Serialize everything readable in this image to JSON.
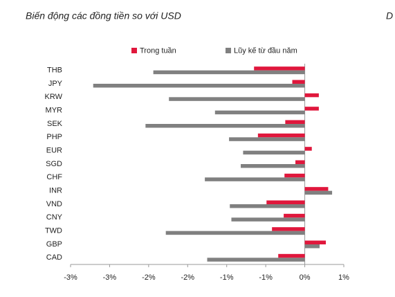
{
  "chart_data": {
    "type": "hbar",
    "title": "Biến động các đồng tiền so với USD",
    "title_right": "D",
    "categories": [
      "THB",
      "JPY",
      "KRW",
      "MYR",
      "SEK",
      "PHP",
      "EUR",
      "SGD",
      "CHF",
      "INR",
      "VND",
      "CNY",
      "TWD",
      "GBP",
      "CAD"
    ],
    "series": [
      {
        "name": "Trong tuần",
        "color": "#e0173c",
        "values": [
          -0.65,
          -0.16,
          0.18,
          0.18,
          -0.25,
          -0.6,
          0.09,
          -0.12,
          -0.26,
          0.3,
          -0.49,
          -0.27,
          -0.42,
          0.27,
          -0.34
        ]
      },
      {
        "name": "Lũy kế từ đầu năm",
        "color": "#808080",
        "values": [
          -1.94,
          -2.71,
          -1.74,
          -1.15,
          -2.04,
          -0.97,
          -0.79,
          -0.82,
          -1.28,
          0.35,
          -0.96,
          -0.94,
          -1.78,
          0.19,
          -1.25
        ]
      }
    ],
    "xlim": [
      -3,
      0.5
    ],
    "xticks": [
      {
        "value": -3,
        "label": "-3%"
      },
      {
        "value": -2.5,
        "label": "-3%"
      },
      {
        "value": -2,
        "label": "-2%"
      },
      {
        "value": -1.5,
        "label": "-2%"
      },
      {
        "value": -1,
        "label": "-1%"
      },
      {
        "value": -0.5,
        "label": "-1%"
      },
      {
        "value": 0,
        "label": "0%"
      },
      {
        "value": 0.5,
        "label": "1%"
      }
    ],
    "legend": "top"
  }
}
